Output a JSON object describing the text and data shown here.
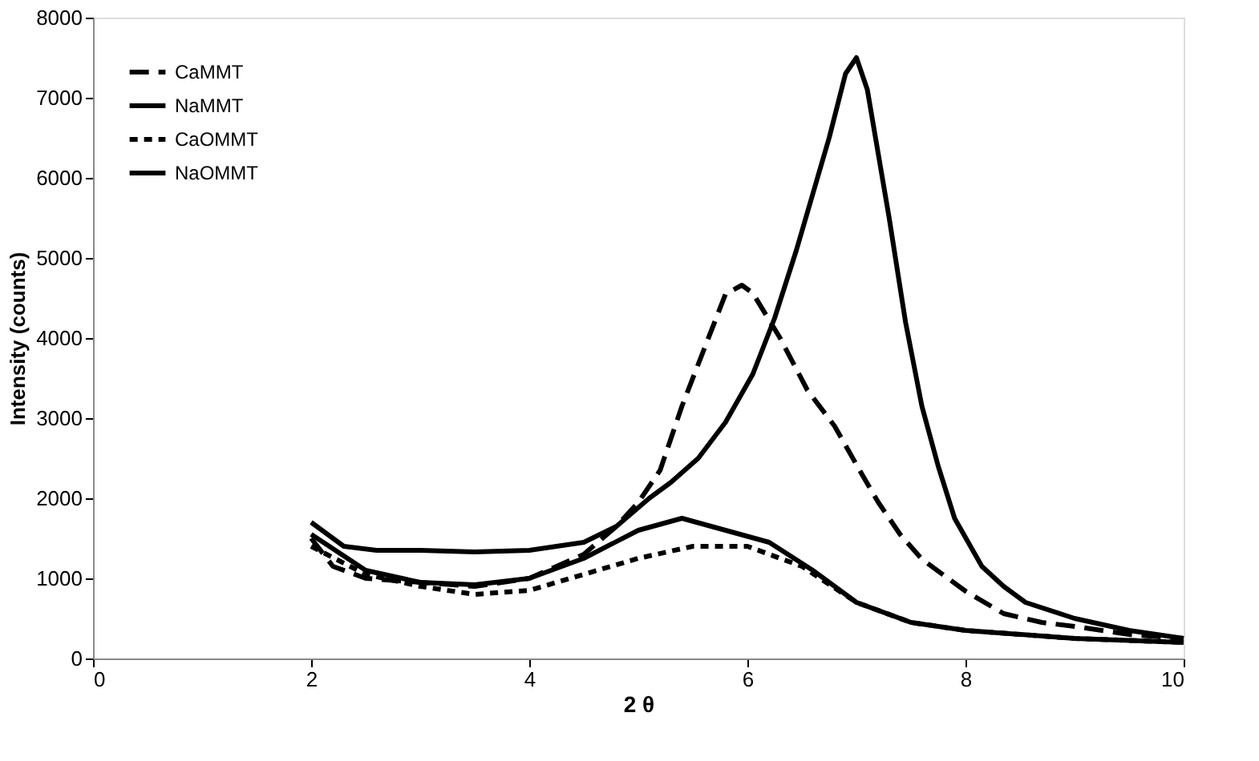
{
  "chart_data": {
    "type": "line",
    "xlabel": "2 θ",
    "ylabel": "Intensity (counts)",
    "xlim": [
      0,
      10
    ],
    "xticks": [
      0,
      2,
      4,
      6,
      8,
      10
    ],
    "ylim": [
      0,
      8000
    ],
    "yticks": [
      0,
      1000,
      2000,
      3000,
      4000,
      5000,
      6000,
      7000,
      8000
    ],
    "grid": false,
    "legend": "top left",
    "marker": "none",
    "series": [
      {
        "name": "CaMMT",
        "color": "#000000",
        "line_style": "dashed",
        "x": [
          2,
          2.2,
          2.5,
          3,
          3.5,
          4,
          4.5,
          4.8,
          5.0,
          5.2,
          5.4,
          5.6,
          5.8,
          5.95,
          6.05,
          6.3,
          6.55,
          6.8,
          7.05,
          7.2,
          7.4,
          7.6,
          7.8,
          8.0,
          8.35,
          8.7,
          9,
          9.5,
          10
        ],
        "values": [
          1500,
          1150,
          1000,
          950,
          900,
          1000,
          1300,
          1650,
          1950,
          2350,
          3150,
          3850,
          4550,
          4660,
          4560,
          4000,
          3350,
          2900,
          2300,
          1950,
          1550,
          1240,
          1040,
          840,
          560,
          450,
          400,
          300,
          250
        ]
      },
      {
        "name": "NaMMT",
        "color": "#000000",
        "line_style": "solid",
        "x": [
          2,
          2.3,
          2.6,
          3,
          3.5,
          4,
          4.5,
          4.8,
          5.1,
          5.3,
          5.55,
          5.8,
          6.05,
          6.25,
          6.45,
          6.6,
          6.75,
          6.9,
          7.0,
          7.1,
          7.2,
          7.3,
          7.45,
          7.6,
          7.75,
          7.9,
          8.15,
          8.35,
          8.55,
          9,
          9.5,
          10
        ],
        "values": [
          1700,
          1400,
          1350,
          1350,
          1330,
          1350,
          1450,
          1650,
          2000,
          2200,
          2500,
          2950,
          3550,
          4250,
          5100,
          5800,
          6500,
          7300,
          7500,
          7100,
          6300,
          5500,
          4200,
          3150,
          2400,
          1750,
          1150,
          900,
          700,
          500,
          350,
          250
        ]
      },
      {
        "name": "CaOMMT",
        "color": "#000000",
        "line_style": "dashed",
        "x": [
          2,
          2.5,
          3,
          3.5,
          4,
          4.5,
          5,
          5.5,
          6,
          6.5,
          7,
          7.5,
          8,
          9,
          10
        ],
        "values": [
          1400,
          1050,
          900,
          800,
          850,
          1050,
          1250,
          1400,
          1400,
          1150,
          700,
          450,
          350,
          250,
          200
        ]
      },
      {
        "name": "NaOMMT",
        "color": "#000000",
        "line_style": "solid",
        "x": [
          2,
          2.5,
          3,
          3.5,
          4,
          4.5,
          5,
          5.4,
          5.8,
          6.2,
          6.6,
          7,
          7.5,
          8,
          9,
          10
        ],
        "values": [
          1550,
          1100,
          950,
          920,
          1000,
          1250,
          1600,
          1750,
          1600,
          1450,
          1100,
          700,
          450,
          350,
          250,
          200
        ]
      }
    ]
  }
}
